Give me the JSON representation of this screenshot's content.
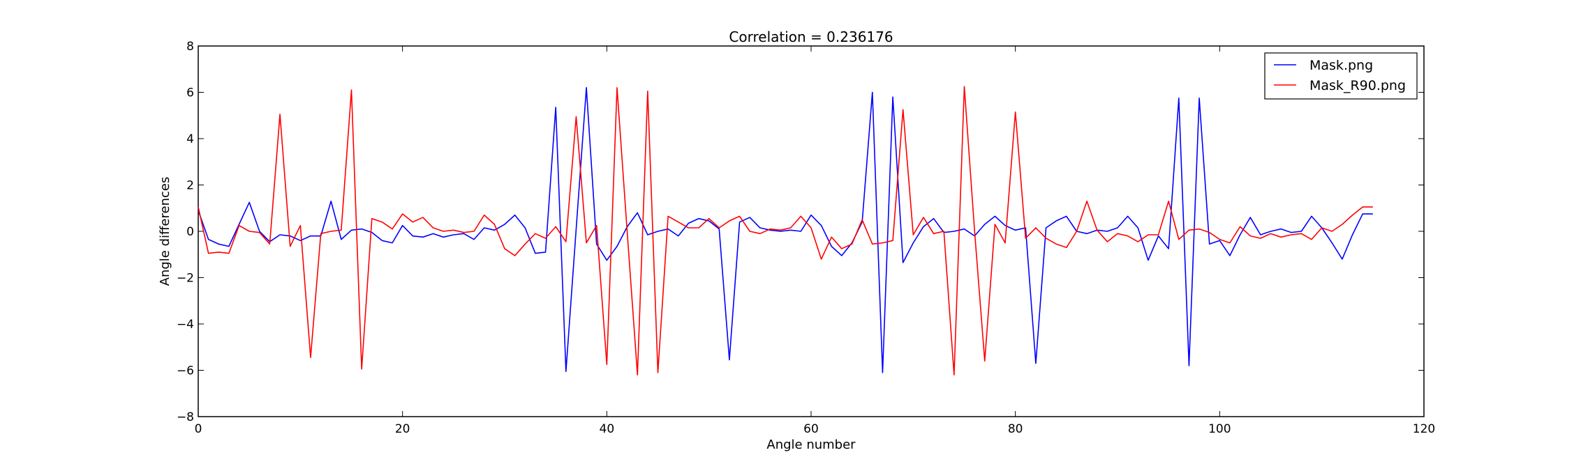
{
  "chart_data": {
    "type": "line",
    "title": "Correlation = 0.236176",
    "xlabel": "Angle number",
    "ylabel": "Angle differences",
    "xlim": [
      0,
      120
    ],
    "ylim": [
      -8,
      8
    ],
    "xticks": [
      0,
      20,
      40,
      60,
      80,
      100,
      120
    ],
    "yticks": [
      -8,
      -6,
      -4,
      -2,
      0,
      2,
      4,
      6,
      8
    ],
    "grid": false,
    "legend_position": "top-right",
    "series": [
      {
        "name": "Mask.png",
        "color": "#0000ff",
        "values": [
          0.9,
          -0.35,
          -0.55,
          -0.65,
          0.3,
          1.25,
          0.0,
          -0.45,
          -0.15,
          -0.2,
          -0.4,
          -0.2,
          -0.2,
          1.3,
          -0.35,
          0.05,
          0.1,
          -0.05,
          -0.4,
          -0.5,
          0.25,
          -0.2,
          -0.25,
          -0.1,
          -0.25,
          -0.15,
          -0.1,
          -0.35,
          0.15,
          0.05,
          0.3,
          0.7,
          0.15,
          -0.95,
          -0.9,
          5.35,
          -6.05,
          0.1,
          6.2,
          -0.55,
          -1.25,
          -0.65,
          0.2,
          0.8,
          -0.15,
          0.0,
          0.1,
          -0.2,
          0.35,
          0.55,
          0.45,
          0.1,
          -5.55,
          0.4,
          0.6,
          0.15,
          0.05,
          0.0,
          0.05,
          0.0,
          0.7,
          0.25,
          -0.65,
          -1.05,
          -0.5,
          0.4,
          6.0,
          -6.1,
          5.8,
          -1.35,
          -0.5,
          0.2,
          0.55,
          -0.05,
          0.0,
          0.1,
          -0.2,
          0.3,
          0.65,
          0.25,
          0.05,
          0.15,
          -5.7,
          0.15,
          0.45,
          0.65,
          0.0,
          -0.1,
          0.05,
          0.0,
          0.15,
          0.65,
          0.15,
          -1.25,
          -0.2,
          -0.75,
          5.75,
          -5.8,
          5.75,
          -0.55,
          -0.4,
          -1.05,
          -0.15,
          0.6,
          -0.15,
          0.0,
          0.1,
          -0.05,
          0.0,
          0.65,
          0.15,
          -0.5,
          -1.2,
          -0.15,
          0.75,
          0.75
        ]
      },
      {
        "name": "Mask_R90.png",
        "color": "#ff0000",
        "values": [
          1.05,
          -0.95,
          -0.9,
          -0.95,
          0.25,
          0.0,
          -0.05,
          -0.55,
          5.05,
          -0.65,
          0.25,
          -5.45,
          -0.1,
          0.0,
          0.05,
          6.1,
          -5.95,
          0.55,
          0.4,
          0.1,
          0.75,
          0.4,
          0.6,
          0.15,
          0.0,
          0.05,
          -0.05,
          0.0,
          0.7,
          0.3,
          -0.75,
          -1.05,
          -0.55,
          -0.1,
          -0.3,
          0.2,
          -0.45,
          4.95,
          -0.5,
          0.25,
          -5.75,
          6.2,
          -0.05,
          -6.2,
          6.05,
          -6.1,
          0.65,
          0.4,
          0.15,
          0.15,
          0.55,
          0.15,
          0.45,
          0.65,
          0.0,
          -0.1,
          0.1,
          0.05,
          0.15,
          0.65,
          0.15,
          -1.2,
          -0.25,
          -0.75,
          -0.55,
          0.5,
          -0.55,
          -0.5,
          -0.4,
          5.25,
          -0.15,
          0.6,
          -0.1,
          0.0,
          -6.2,
          6.25,
          0.05,
          -5.6,
          0.3,
          -0.5,
          5.15,
          -0.3,
          0.15,
          -0.3,
          -0.55,
          -0.7,
          0.0,
          1.3,
          0.05,
          -0.45,
          -0.1,
          -0.2,
          -0.45,
          -0.15,
          -0.15,
          1.3,
          -0.35,
          0.05,
          0.1,
          -0.05,
          -0.35,
          -0.5,
          0.2,
          -0.2,
          -0.3,
          -0.1,
          -0.25,
          -0.15,
          -0.1,
          -0.35,
          0.15,
          0.0,
          0.3,
          0.7,
          1.05,
          1.05
        ]
      }
    ]
  }
}
